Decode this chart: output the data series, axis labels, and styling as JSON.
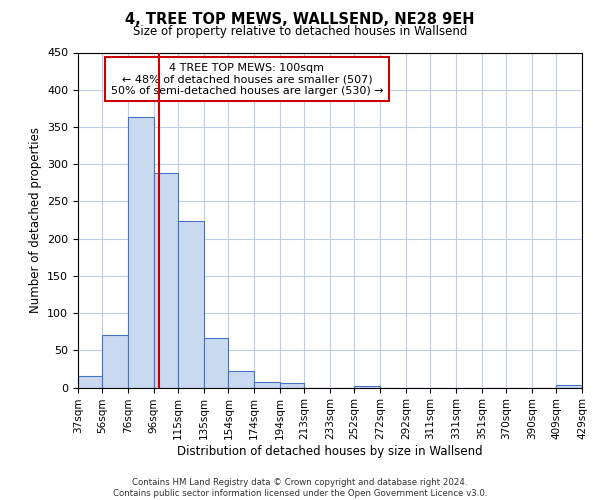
{
  "title": "4, TREE TOP MEWS, WALLSEND, NE28 9EH",
  "subtitle": "Size of property relative to detached houses in Wallsend",
  "xlabel": "Distribution of detached houses by size in Wallsend",
  "ylabel": "Number of detached properties",
  "bin_edges": [
    37,
    56,
    76,
    96,
    115,
    135,
    154,
    174,
    194,
    213,
    233,
    252,
    272,
    292,
    311,
    331,
    351,
    370,
    390,
    409,
    429
  ],
  "bin_labels": [
    "37sqm",
    "56sqm",
    "76sqm",
    "96sqm",
    "115sqm",
    "135sqm",
    "154sqm",
    "174sqm",
    "194sqm",
    "213sqm",
    "233sqm",
    "252sqm",
    "272sqm",
    "292sqm",
    "311sqm",
    "331sqm",
    "351sqm",
    "370sqm",
    "390sqm",
    "409sqm",
    "429sqm"
  ],
  "counts": [
    15,
    71,
    363,
    288,
    224,
    67,
    22,
    7,
    6,
    0,
    0,
    2,
    0,
    0,
    0,
    0,
    0,
    0,
    0,
    3
  ],
  "bar_color": "#c9d9f0",
  "bar_edge_color": "#4472c4",
  "vline_x": 100,
  "vline_color": "#cc0000",
  "ylim": [
    0,
    450
  ],
  "yticks": [
    0,
    50,
    100,
    150,
    200,
    250,
    300,
    350,
    400,
    450
  ],
  "annotation_title": "4 TREE TOP MEWS: 100sqm",
  "annotation_line1": "← 48% of detached houses are smaller (507)",
  "annotation_line2": "50% of semi-detached houses are larger (530) →",
  "annotation_box_color": "#ffffff",
  "annotation_box_edge": "#cc0000",
  "footer_line1": "Contains HM Land Registry data © Crown copyright and database right 2024.",
  "footer_line2": "Contains public sector information licensed under the Open Government Licence v3.0.",
  "background_color": "#ffffff",
  "grid_color": "#c0cfe8"
}
